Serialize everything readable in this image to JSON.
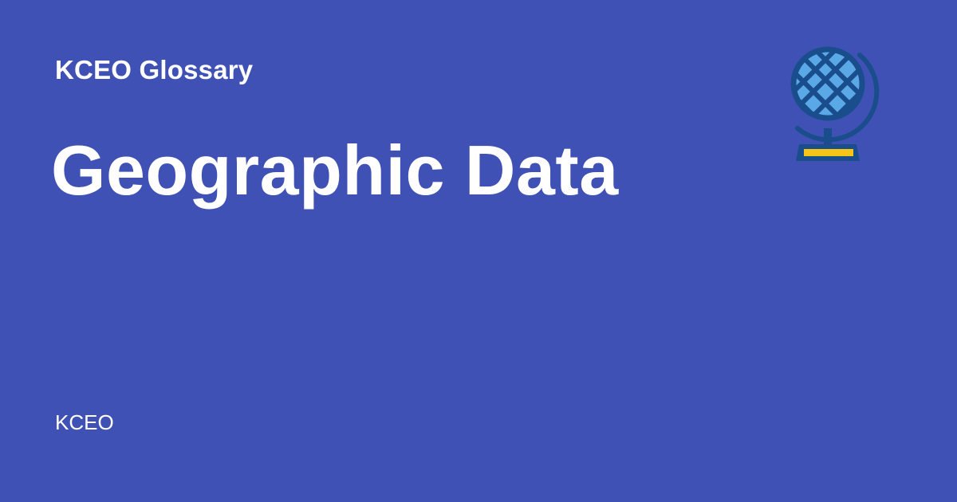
{
  "header": {
    "eyebrow": "KCEO Glossary"
  },
  "main": {
    "title": "Geographic Data"
  },
  "footer": {
    "brand": "KCEO"
  },
  "icons": {
    "hero": "globe-icon"
  },
  "colors": {
    "background": "#3f51b5",
    "text": "#ffffff",
    "globe_outline": "#1a4d8c",
    "globe_fill": "#5aa9e6",
    "stand_accent": "#f5c518"
  }
}
